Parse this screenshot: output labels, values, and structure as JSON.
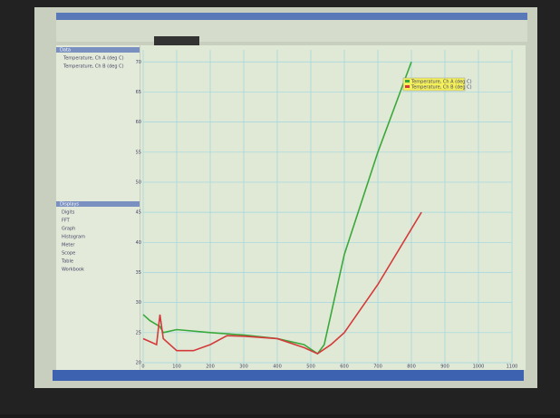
{
  "window": {
    "panels": {
      "data": {
        "title": "Data",
        "items": [
          "Temperature, Ch A (deg C)",
          "Temperature, Ch B (deg C)"
        ]
      },
      "displays": {
        "title": "Displays",
        "items": [
          "Digits",
          "FFT",
          "Graph",
          "Histogram",
          "Meter",
          "Scope",
          "Table",
          "Workbook"
        ]
      }
    }
  },
  "chart_data": {
    "type": "line",
    "xlim": [
      0,
      1100
    ],
    "xticks": [
      0,
      100,
      200,
      300,
      400,
      500,
      600,
      700,
      800,
      900,
      1000,
      1100
    ],
    "ylim": [
      20,
      72
    ],
    "yticks": [
      20,
      25,
      30,
      35,
      40,
      45,
      50,
      55,
      60,
      65,
      70
    ],
    "grid": true,
    "legend": "top-right",
    "series": [
      {
        "name": "Temperature, Ch A (deg C)",
        "color": "#3aa83a",
        "x": [
          0,
          20,
          50,
          55,
          60,
          100,
          200,
          300,
          400,
          480,
          520,
          540,
          600,
          700,
          800
        ],
        "values": [
          28,
          27,
          26,
          25.5,
          25,
          25.5,
          25,
          24.6,
          24,
          23,
          21.5,
          23,
          38,
          55,
          70
        ]
      },
      {
        "name": "Temperature, Ch B (deg C)",
        "color": "#d43a3a",
        "x": [
          0,
          20,
          40,
          50,
          60,
          100,
          150,
          200,
          250,
          300,
          400,
          480,
          520,
          560,
          600,
          700,
          830
        ],
        "values": [
          24,
          23.5,
          23,
          28,
          24,
          22,
          22,
          23,
          24.5,
          24.4,
          24,
          22.5,
          21.5,
          23,
          25,
          33,
          45
        ]
      }
    ]
  }
}
